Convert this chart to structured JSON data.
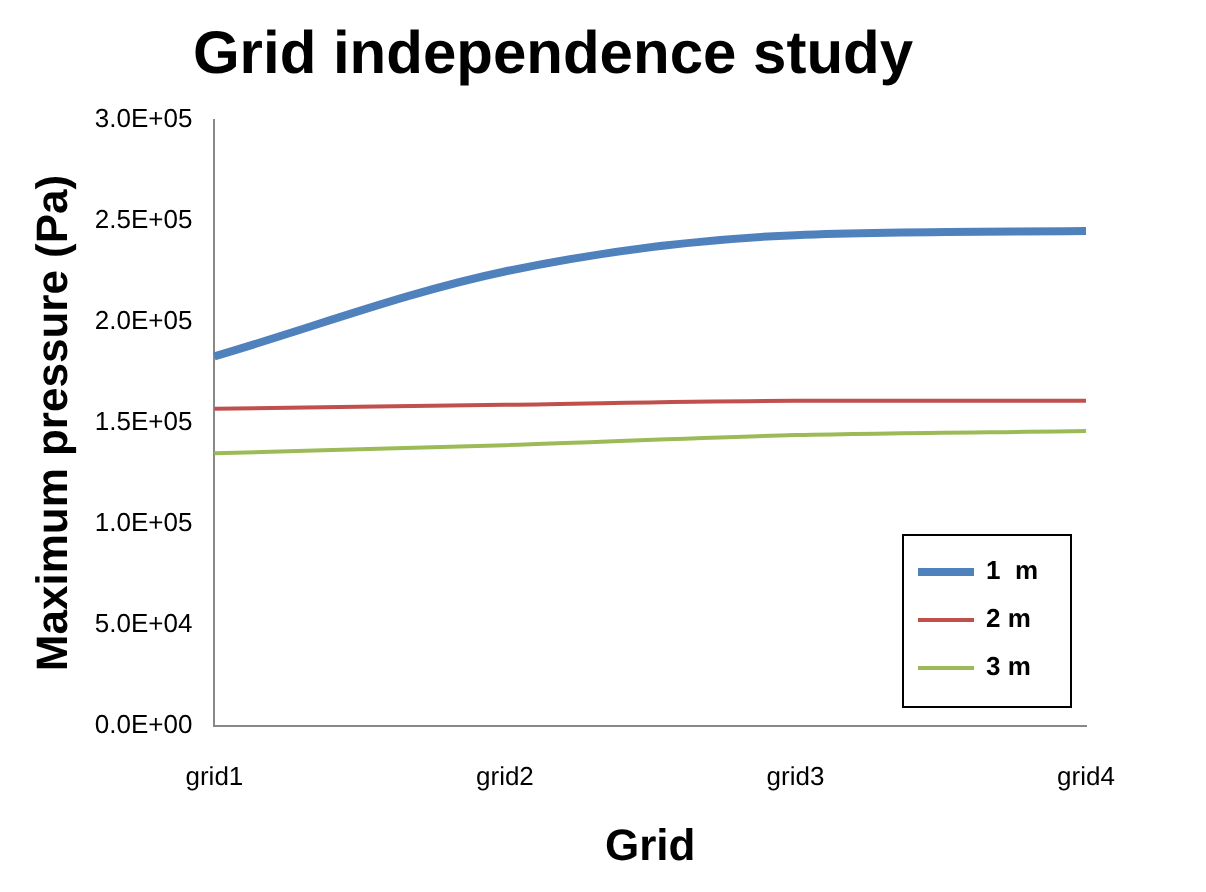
{
  "chart_data": {
    "type": "line",
    "title": "Grid independence study",
    "xlabel": "Grid",
    "ylabel": "Maximum pressure (Pa)",
    "categories": [
      "grid1",
      "grid2",
      "grid3",
      "grid4"
    ],
    "series": [
      {
        "name": "1  m",
        "color": "#4f81bd",
        "values": [
          183000,
          225000,
          243000,
          245000
        ]
      },
      {
        "name": "2 m",
        "color": "#c0504d",
        "values": [
          157000,
          159000,
          161000,
          161000
        ]
      },
      {
        "name": "3 m",
        "color": "#9bbb59",
        "values": [
          135000,
          139000,
          144000,
          146000
        ]
      }
    ],
    "ylim": [
      0,
      300000
    ],
    "yticks": [
      {
        "value": 0,
        "label": "0.0E+00"
      },
      {
        "value": 50000,
        "label": "5.0E+04"
      },
      {
        "value": 100000,
        "label": "1.0E+05"
      },
      {
        "value": 150000,
        "label": "1.5E+05"
      },
      {
        "value": 200000,
        "label": "2.0E+05"
      },
      {
        "value": 250000,
        "label": "2.5E+05"
      },
      {
        "value": 300000,
        "label": "3.0E+05"
      }
    ],
    "grid": false,
    "legend": "bottom right",
    "marker": "none",
    "line_style": "solid"
  }
}
